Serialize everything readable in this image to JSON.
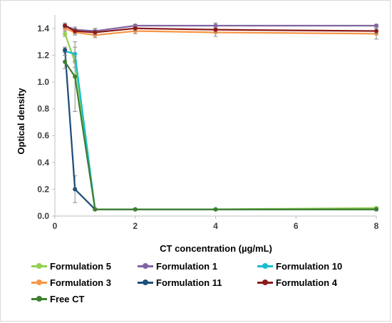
{
  "chart_data": {
    "type": "line",
    "xlabel": "CT concentration (µg/mL)",
    "ylabel": "Optical density",
    "xlim": [
      0,
      8
    ],
    "ylim": [
      0,
      1.5
    ],
    "xticks": [
      "0",
      "2",
      "4",
      "6",
      "8"
    ],
    "yticks": [
      "0.0",
      "0.2",
      "0.4",
      "0.6",
      "0.8",
      "1.0",
      "1.2",
      "1.4"
    ],
    "grid": false,
    "legend_position": "bottom",
    "series": [
      {
        "name": "Formulation 5",
        "color": "#92d050",
        "x": [
          0.25,
          0.5,
          1,
          2,
          4,
          8
        ],
        "y": [
          1.36,
          1.15,
          0.05,
          0.05,
          0.05,
          0.06
        ],
        "err": [
          0.02,
          0.04,
          0.005,
          0.005,
          0.005,
          0.005
        ]
      },
      {
        "name": "Formulation 1",
        "color": "#8064a2",
        "x": [
          0.25,
          0.5,
          1,
          2,
          4,
          8
        ],
        "y": [
          1.42,
          1.39,
          1.38,
          1.42,
          1.42,
          1.42
        ],
        "err": [
          0.01,
          0.02,
          0.02,
          0.01,
          0.02,
          0.01
        ]
      },
      {
        "name": "Formulation 10",
        "color": "#17becf",
        "x": [
          0.25,
          0.5,
          1,
          2,
          4,
          8
        ],
        "y": [
          1.23,
          1.21,
          0.05,
          0.05,
          0.05,
          0.05
        ],
        "err": [
          0.03,
          0.05,
          0.005,
          0.005,
          0.005,
          0.005
        ]
      },
      {
        "name": "Formulation 3",
        "color": "#f79646",
        "x": [
          0.25,
          0.5,
          1,
          2,
          4,
          8
        ],
        "y": [
          1.4,
          1.37,
          1.35,
          1.38,
          1.37,
          1.36
        ],
        "err": [
          0.02,
          0.02,
          0.02,
          0.02,
          0.03,
          0.04
        ]
      },
      {
        "name": "Formulation 11",
        "color": "#1f4e79",
        "x": [
          0.25,
          0.5,
          1,
          2,
          4,
          8
        ],
        "y": [
          1.24,
          0.2,
          0.05,
          0.05,
          0.05,
          0.05
        ],
        "err": [
          0.02,
          0.1,
          0.005,
          0.005,
          0.005,
          0.005
        ]
      },
      {
        "name": "Formulation 4",
        "color": "#8b1a1a",
        "x": [
          0.25,
          0.5,
          1,
          2,
          4,
          8
        ],
        "y": [
          1.42,
          1.38,
          1.37,
          1.4,
          1.39,
          1.38
        ],
        "err": [
          0.02,
          0.02,
          0.02,
          0.02,
          0.02,
          0.02
        ]
      },
      {
        "name": "Free CT",
        "color": "#3f7f2f",
        "x": [
          0.25,
          0.5,
          1,
          2,
          4,
          8
        ],
        "y": [
          1.15,
          1.04,
          0.05,
          0.05,
          0.05,
          0.05
        ],
        "err": [
          0.05,
          0.26,
          0.005,
          0.005,
          0.005,
          0.005
        ]
      }
    ]
  }
}
